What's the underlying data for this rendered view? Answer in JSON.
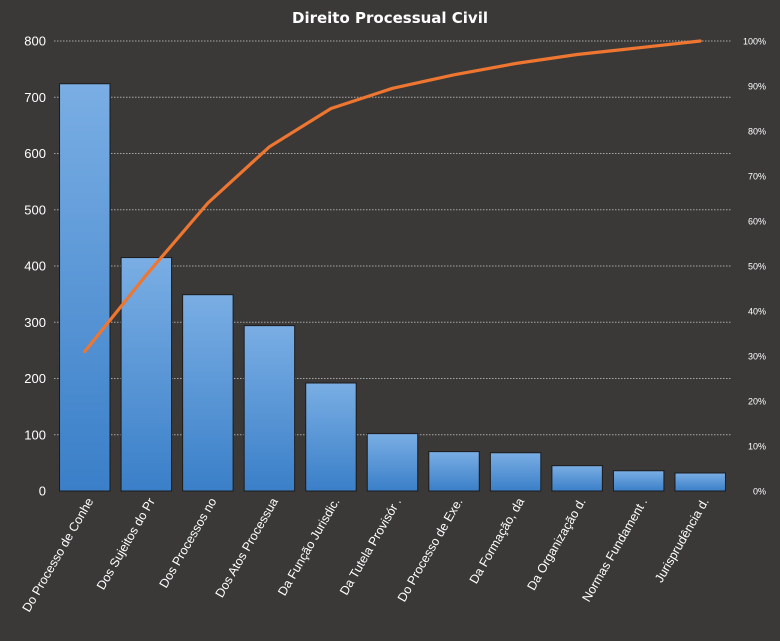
{
  "chart_data": {
    "type": "bar",
    "title": "Direito  Processual  Civil",
    "categories": [
      "Do Processo de Conhe",
      "Dos Sujeitos do Pr",
      "Dos Processos no",
      "Dos Atos Processua",
      "Da Função Jurisdic.",
      "Da Tutela Provisór .",
      "Do Processo de Exe.",
      "Da Formação, da",
      "Da Organização d.",
      "Normas Fundament .",
      "Jurisprudência d."
    ],
    "series": [
      {
        "type": "bar",
        "axis": "left",
        "values": [
          724,
          415,
          349,
          294,
          192,
          102,
          70,
          68,
          45,
          36,
          32
        ]
      },
      {
        "type": "line",
        "axis": "right",
        "values": [
          0.31,
          0.48,
          0.64,
          0.765,
          0.85,
          0.895,
          0.925,
          0.95,
          0.97,
          0.985,
          1.0
        ]
      }
    ],
    "y_left": {
      "range": [
        0,
        800
      ],
      "ticks": [
        "0",
        "100",
        "200",
        "300",
        "400",
        "500",
        "600",
        "700",
        "800"
      ]
    },
    "y_right": {
      "range": [
        0,
        1
      ],
      "ticks": [
        "0%",
        "10%",
        "20%",
        "30%",
        "40%",
        "50%",
        "60%",
        "70%",
        "80%",
        "90%",
        "100%"
      ]
    },
    "grid": "horizontal-dotted",
    "legend": "none",
    "colors": {
      "background": "#3a3938",
      "bar_light": "#7aaee4",
      "bar_dark": "#3a7fc8",
      "bar_stroke": "#1c1c1c",
      "line": "#ee7630",
      "grid": "#a8a8a8",
      "text": "#ffffff"
    }
  }
}
